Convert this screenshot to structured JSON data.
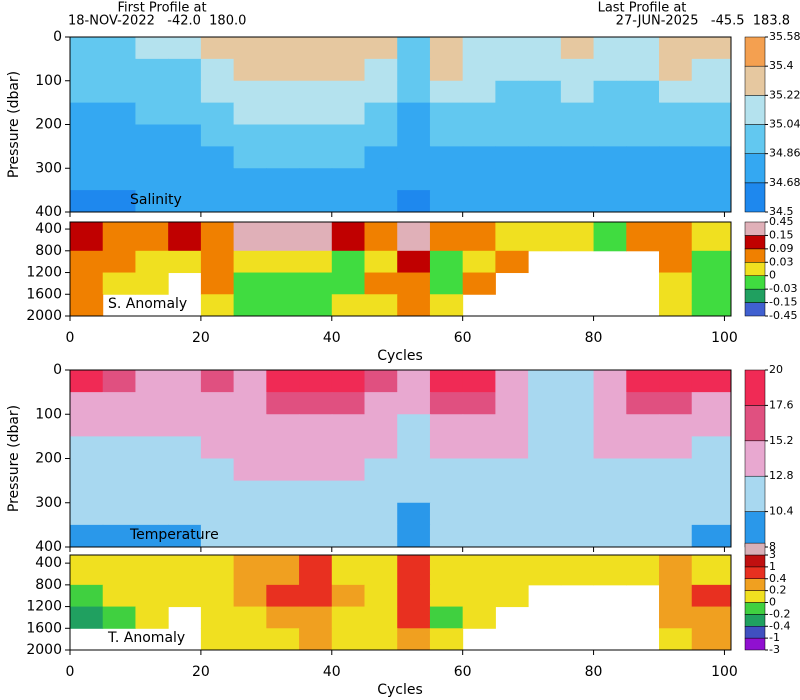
{
  "header": {
    "first_title": "First Profile at",
    "first_info": "18-NOV-2022   -42.0  180.0",
    "last_title": "Last Profile at",
    "last_info": "27-JUN-2025   -45.5  183.8"
  },
  "chart_data": [
    {
      "type": "heatmap",
      "label": "Salinity",
      "ylabel": "Pressure (dbar)",
      "xlim": [
        0,
        101
      ],
      "ylim": [
        0,
        400
      ],
      "y_inverted": true,
      "yticks": [
        0,
        100,
        200,
        300,
        400
      ],
      "xbins": [
        0,
        5,
        10,
        15,
        20,
        25,
        30,
        35,
        40,
        45,
        50,
        55,
        60,
        65,
        70,
        75,
        80,
        85,
        90,
        95,
        100
      ],
      "ybins": [
        0,
        50,
        100,
        150,
        200,
        250,
        300,
        350,
        400
      ],
      "values": [
        [
          35.0,
          35.0,
          35.1,
          35.05,
          35.25,
          35.35,
          35.35,
          35.3,
          35.3,
          35.3,
          35.0,
          35.3,
          35.15,
          35.1,
          35.1,
          35.25,
          35.1,
          35.1,
          35.3,
          35.25
        ],
        [
          34.95,
          34.95,
          35.0,
          35.0,
          35.2,
          35.3,
          35.3,
          35.25,
          35.25,
          35.2,
          34.95,
          35.25,
          35.1,
          35.05,
          35.05,
          35.2,
          35.05,
          35.05,
          35.25,
          35.15
        ],
        [
          34.9,
          34.9,
          34.95,
          34.95,
          35.1,
          35.2,
          35.2,
          35.15,
          35.15,
          35.1,
          34.9,
          35.1,
          35.05,
          35.0,
          35.0,
          35.1,
          35.0,
          35.0,
          35.1,
          35.05
        ],
        [
          34.85,
          34.85,
          34.9,
          34.9,
          35.0,
          35.1,
          35.1,
          35.05,
          35.05,
          35.0,
          34.85,
          35.0,
          34.95,
          34.95,
          34.95,
          35.0,
          34.95,
          34.95,
          35.0,
          34.95
        ],
        [
          34.8,
          34.8,
          34.85,
          34.85,
          34.9,
          35.0,
          35.0,
          34.95,
          34.95,
          34.9,
          34.8,
          34.9,
          34.9,
          34.9,
          34.9,
          34.9,
          34.9,
          34.9,
          34.9,
          34.9
        ],
        [
          34.75,
          34.75,
          34.8,
          34.8,
          34.85,
          34.9,
          34.9,
          34.9,
          34.9,
          34.85,
          34.75,
          34.85,
          34.85,
          34.85,
          34.85,
          34.85,
          34.85,
          34.8,
          34.85,
          34.8
        ],
        [
          34.7,
          34.7,
          34.75,
          34.75,
          34.8,
          34.85,
          34.85,
          34.85,
          34.85,
          34.8,
          34.7,
          34.8,
          34.8,
          34.8,
          34.8,
          34.8,
          34.8,
          34.75,
          34.8,
          34.75
        ],
        [
          34.65,
          34.65,
          34.7,
          34.7,
          34.75,
          34.8,
          34.8,
          34.8,
          34.75,
          34.75,
          34.65,
          34.75,
          34.75,
          34.75,
          34.75,
          34.75,
          34.75,
          34.7,
          34.75,
          34.7
        ]
      ],
      "colorbar": {
        "ticks": [
          34.5,
          34.68,
          34.86,
          35.04,
          35.22,
          35.4,
          35.58
        ],
        "colors": [
          "#1e88ee",
          "#34a8f2",
          "#62c8f0",
          "#b4e2ee",
          "#e6c8a0",
          "#f4a050"
        ]
      }
    },
    {
      "type": "heatmap",
      "label": "S. Anomaly",
      "xlabel": "Cycles",
      "xlim": [
        0,
        101
      ],
      "ylim": [
        270,
        2000
      ],
      "y_inverted": true,
      "yticks": [
        400,
        800,
        1200,
        1600,
        2000
      ],
      "xticks": [
        0,
        20,
        40,
        60,
        80,
        100
      ],
      "xbins": [
        0,
        5,
        10,
        15,
        20,
        25,
        30,
        35,
        40,
        45,
        50,
        55,
        60,
        65,
        70,
        75,
        80,
        85,
        90,
        95,
        100
      ],
      "ybins": [
        270,
        800,
        1200,
        1600,
        2000
      ],
      "values": [
        [
          0.1,
          0.05,
          0.05,
          0.1,
          0.03,
          0.15,
          0.2,
          0.2,
          0.1,
          0.05,
          0.2,
          0.05,
          0.03,
          0.01,
          0.0,
          0.01,
          -0.02,
          0.03,
          0.05,
          0.01
        ],
        [
          0.03,
          0.03,
          0.01,
          0.02,
          0.05,
          0.01,
          0.0,
          0.0,
          -0.02,
          0.01,
          0.1,
          -0.02,
          0.01,
          0.03,
          null,
          null,
          null,
          null,
          0.05,
          -0.02
        ],
        [
          0.04,
          0.02,
          0.0,
          null,
          0.03,
          -0.01,
          -0.02,
          -0.03,
          -0.02,
          0.03,
          0.05,
          -0.01,
          0.05,
          null,
          null,
          null,
          null,
          null,
          0.02,
          -0.03
        ],
        [
          0.05,
          null,
          null,
          null,
          0.02,
          -0.02,
          -0.03,
          -0.02,
          0.0,
          0.02,
          0.03,
          0.0,
          null,
          null,
          null,
          null,
          null,
          null,
          0.01,
          -0.03
        ]
      ],
      "colorbar": {
        "ticks": [
          -0.45,
          -0.15,
          -0.03,
          0,
          0.03,
          0.09,
          0.15,
          0.45
        ],
        "colors": [
          "#4060d0",
          "#20a060",
          "#40dc40",
          "#f0e020",
          "#f08000",
          "#c00000",
          "#e0b0b8"
        ]
      }
    },
    {
      "type": "heatmap",
      "label": "Temperature",
      "ylabel": "Pressure (dbar)",
      "xlim": [
        0,
        101
      ],
      "ylim": [
        0,
        400
      ],
      "y_inverted": true,
      "yticks": [
        0,
        100,
        200,
        300,
        400
      ],
      "xbins": [
        0,
        5,
        10,
        15,
        20,
        25,
        30,
        35,
        40,
        45,
        50,
        55,
        60,
        65,
        70,
        75,
        80,
        85,
        90,
        95,
        100
      ],
      "ybins": [
        0,
        50,
        100,
        150,
        200,
        250,
        300,
        350,
        400
      ],
      "values": [
        [
          18,
          17,
          15,
          15,
          16,
          15,
          18,
          18,
          18,
          17,
          15,
          18,
          18,
          15,
          12.5,
          12.5,
          15,
          18,
          18,
          18
        ],
        [
          15,
          15,
          14,
          14,
          15,
          15,
          16,
          16,
          16,
          15,
          14,
          16,
          16,
          15,
          12.5,
          12.5,
          15,
          16,
          16,
          15
        ],
        [
          13,
          13,
          13,
          13,
          14,
          15,
          15,
          15,
          15,
          14,
          12,
          15,
          15,
          15,
          12.5,
          12.5,
          14,
          14,
          14,
          13
        ],
        [
          12,
          12,
          12,
          12,
          13,
          14,
          14,
          14,
          14,
          13,
          11,
          13,
          13,
          13,
          12.5,
          12.5,
          13,
          13,
          13,
          12
        ],
        [
          11.5,
          11.5,
          11.5,
          11.5,
          12,
          13,
          13,
          13,
          13,
          12.5,
          11,
          12,
          12,
          12,
          12,
          12,
          12,
          12,
          12,
          11.5
        ],
        [
          11,
          11,
          11,
          11,
          11.5,
          12,
          12,
          12,
          12,
          11.5,
          10.5,
          11.5,
          11.5,
          11.5,
          11.5,
          11.5,
          11.5,
          11.5,
          11.5,
          11
        ],
        [
          10.5,
          10.5,
          10.5,
          10.5,
          11,
          11.5,
          11.5,
          11.5,
          11.5,
          11,
          10,
          11,
          11,
          11,
          11,
          11,
          11,
          11,
          11,
          10.5
        ],
        [
          10,
          10,
          10,
          10,
          10.5,
          11,
          11,
          11,
          11,
          10.5,
          9.5,
          10.5,
          10.5,
          10.5,
          10.5,
          10.5,
          10.5,
          10.5,
          10.5,
          10
        ]
      ],
      "colorbar": {
        "ticks": [
          8,
          10.4,
          12.8,
          15.2,
          17.6,
          20
        ],
        "colors": [
          "#2a98ea",
          "#a8d8f0",
          "#e8a8d0",
          "#e05080",
          "#f02a55"
        ]
      }
    },
    {
      "type": "heatmap",
      "label": "T. Anomaly",
      "xlabel": "Cycles",
      "xlim": [
        0,
        101
      ],
      "ylim": [
        250,
        2000
      ],
      "y_inverted": true,
      "yticks": [
        400,
        800,
        1200,
        1600,
        2000
      ],
      "xticks": [
        0,
        20,
        40,
        60,
        80,
        100
      ],
      "xbins": [
        0,
        5,
        10,
        15,
        20,
        25,
        30,
        35,
        40,
        45,
        50,
        55,
        60,
        65,
        70,
        75,
        80,
        85,
        90,
        95,
        100
      ],
      "ybins": [
        250,
        800,
        1200,
        1600,
        2000
      ],
      "values": [
        [
          0.1,
          0.05,
          0.0,
          0.1,
          0.05,
          0.2,
          0.3,
          0.4,
          0.1,
          0.0,
          0.5,
          0.05,
          0.1,
          0.05,
          0.1,
          0.0,
          0.1,
          0.05,
          0.2,
          0.05
        ],
        [
          -0.1,
          0.05,
          0.1,
          0.0,
          0.05,
          0.2,
          0.5,
          0.45,
          0.2,
          0.05,
          0.5,
          0.0,
          0.1,
          0.1,
          null,
          null,
          null,
          null,
          0.3,
          0.4
        ],
        [
          -0.3,
          -0.1,
          0.0,
          null,
          0.0,
          0.1,
          0.3,
          0.3,
          0.1,
          0.1,
          0.5,
          -0.05,
          0.1,
          null,
          null,
          null,
          null,
          null,
          0.2,
          0.3
        ],
        [
          null,
          null,
          null,
          null,
          0.0,
          0.05,
          0.15,
          0.2,
          0.1,
          0.1,
          0.3,
          0.0,
          null,
          null,
          null,
          null,
          null,
          null,
          0.1,
          0.2
        ]
      ],
      "colorbar": {
        "ticks": [
          -3,
          -1,
          -0.4,
          -0.2,
          0,
          0.2,
          0.4,
          1,
          3
        ],
        "colors": [
          "#9010d0",
          "#4050c0",
          "#20a060",
          "#40d040",
          "#f0e020",
          "#f0a020",
          "#e83020",
          "#c01010",
          "#d8b0b8"
        ]
      }
    }
  ]
}
